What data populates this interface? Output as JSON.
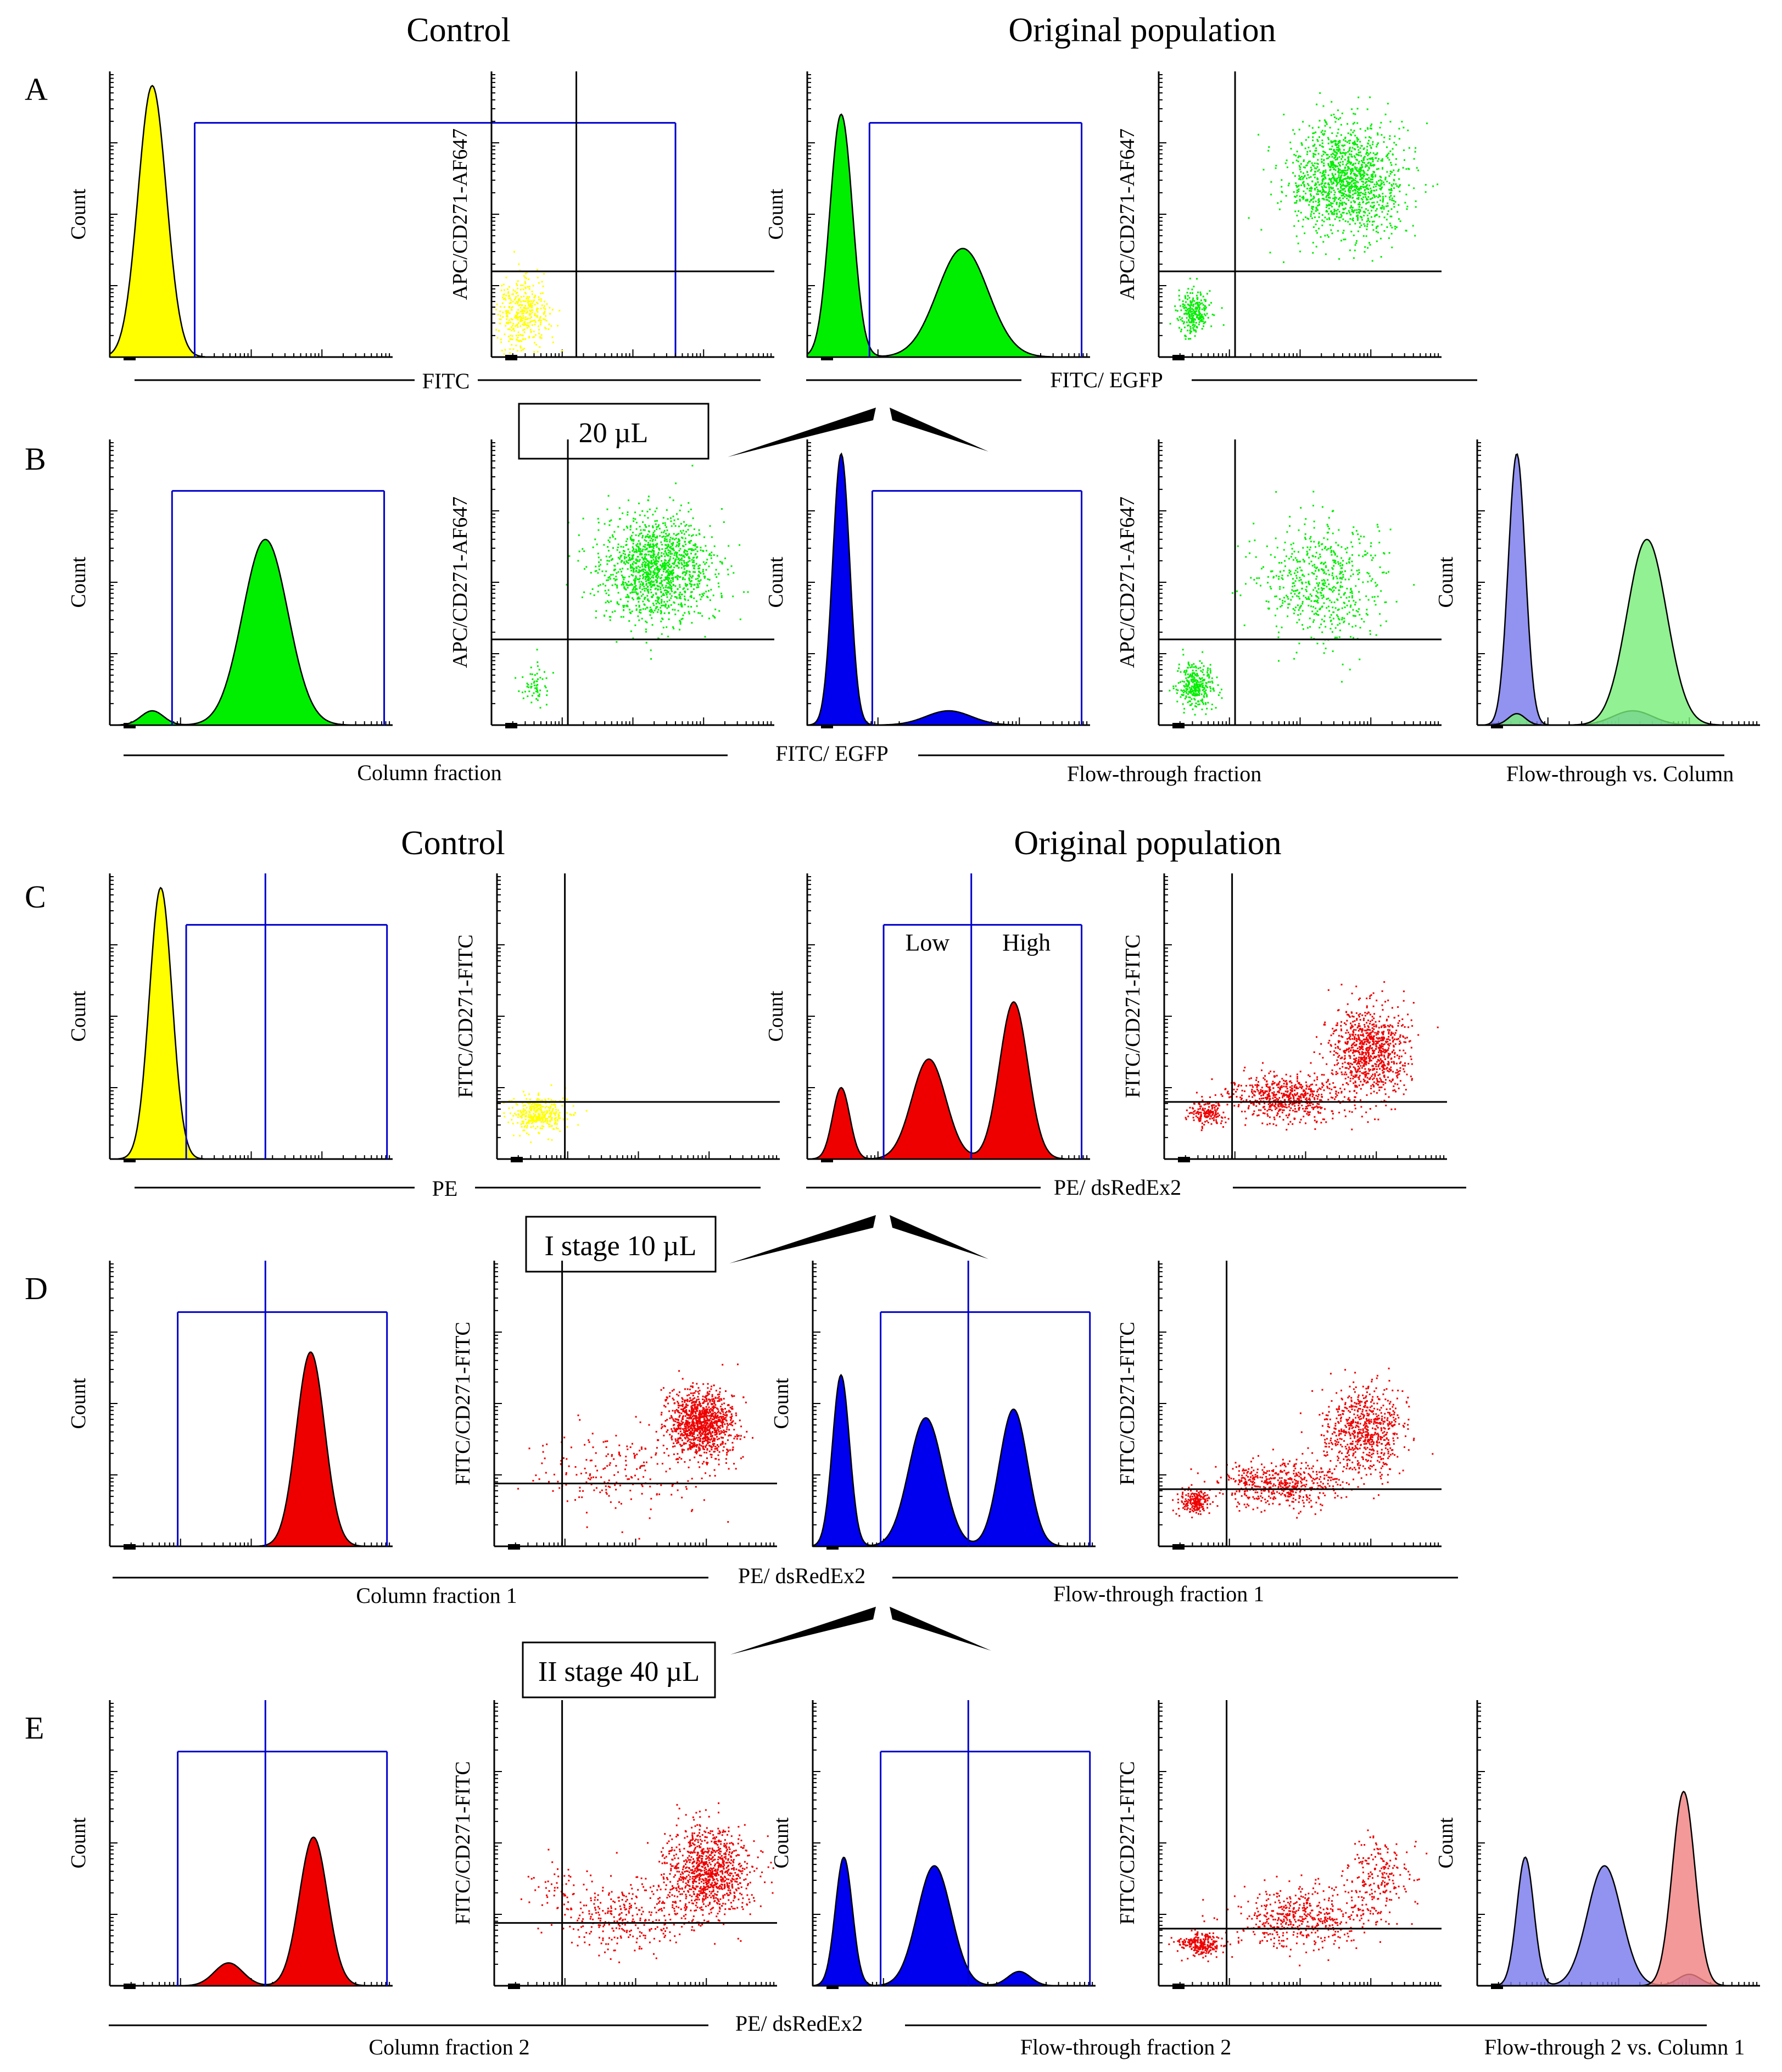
{
  "figure": {
    "header_control": "Control",
    "header_original": "Original population",
    "row_letters": [
      "A",
      "B",
      "C",
      "D",
      "E"
    ],
    "stage_labels": [
      "20 µL",
      "I stage 10 µL",
      "II stage 40 µL"
    ],
    "axis_labels": {
      "count": "Count",
      "fitc": "FITC",
      "fitc_egfp": "FITC/ EGFP",
      "apc_cd271": "APC/CD271-AF647",
      "pe": "PE",
      "pe_dsredex2": "PE/ dsRedEx2",
      "fitc_cd271": "FITC/CD271-FITC"
    },
    "fraction_labels": {
      "b_column": "Column fraction",
      "b_flow": "Flow-through fraction",
      "b_overlay": "Flow-through  vs. Column",
      "d_column": "Column fraction 1",
      "d_flow": "Flow-through fraction 1",
      "e_column": "Column fraction 2",
      "e_flow": "Flow-through fraction 2",
      "e_overlay": "Flow-through 2 vs. Column 1"
    },
    "gate_labels": {
      "low": "Low",
      "high": "High"
    }
  },
  "colors": {
    "yellow": "#ffff00",
    "green": "#00ee00",
    "blue": "#0000ee",
    "red": "#ee0000",
    "gate": "#0000cc",
    "overlay_blue": "#7777ee",
    "overlay_green": "#77ee77",
    "overlay_red": "#f08080"
  },
  "chart_data": [
    {
      "id": "A-control-hist",
      "type": "histogram",
      "xlabel": "FITC",
      "ylabel": "Count",
      "x_scale": "log-decades",
      "x_range": [
        0,
        4
      ],
      "series": [
        {
          "name": "Control",
          "color": "yellow",
          "peaks": [
            {
              "center": 0.15,
              "width": 0.05,
              "height": 0.95
            }
          ]
        }
      ],
      "gates": {
        "marker": [
          0.3,
          2.0
        ],
        "dividers": []
      }
    },
    {
      "id": "A-control-dot",
      "type": "scatter",
      "xlabel": "FITC",
      "ylabel": "APC/CD271-AF647",
      "x_range": [
        0,
        4
      ],
      "y_range": [
        0,
        4
      ],
      "quadrant": {
        "x": 0.3,
        "y": 0.3
      },
      "series": [
        {
          "color": "yellow",
          "clusters": [
            {
              "x": 0.1,
              "y": 0.15,
              "sx": 0.05,
              "sy": 0.06,
              "n": 400
            }
          ]
        }
      ]
    },
    {
      "id": "A-original-hist",
      "type": "histogram",
      "xlabel": "FITC/ EGFP",
      "ylabel": "Count",
      "x_range": [
        0,
        4
      ],
      "series": [
        {
          "name": "Original population",
          "color": "green",
          "peaks": [
            {
              "center": 0.12,
              "width": 0.04,
              "height": 0.85
            },
            {
              "center": 0.55,
              "width": 0.09,
              "height": 0.38
            }
          ]
        }
      ],
      "gates": {
        "marker": [
          0.22,
          0.97
        ],
        "dividers": []
      }
    },
    {
      "id": "A-original-dot",
      "type": "scatter",
      "xlabel": "FITC/ EGFP",
      "ylabel": "APC/CD271-AF647",
      "x_range": [
        0,
        4
      ],
      "y_range": [
        0,
        4
      ],
      "quadrant": {
        "x": 0.27,
        "y": 0.3
      },
      "series": [
        {
          "color": "green",
          "clusters": [
            {
              "x": 0.12,
              "y": 0.16,
              "sx": 0.03,
              "sy": 0.04,
              "n": 250
            },
            {
              "x": 0.66,
              "y": 0.62,
              "sx": 0.1,
              "sy": 0.1,
              "n": 1400
            }
          ]
        }
      ]
    },
    {
      "id": "B-column-hist",
      "type": "histogram",
      "xlabel": "FITC/ EGFP",
      "ylabel": "Count",
      "x_range": [
        0,
        4
      ],
      "series": [
        {
          "name": "Column fraction",
          "color": "green",
          "peaks": [
            {
              "center": 0.15,
              "width": 0.04,
              "height": 0.05
            },
            {
              "center": 0.55,
              "width": 0.08,
              "height": 0.65
            }
          ]
        }
      ],
      "gates": {
        "marker": [
          0.22,
          0.97
        ],
        "dividers": []
      }
    },
    {
      "id": "B-column-dot",
      "type": "scatter",
      "xlabel": "FITC/ EGFP",
      "ylabel": "APC/CD271-AF647",
      "x_range": [
        0,
        4
      ],
      "y_range": [
        0,
        4
      ],
      "quadrant": {
        "x": 0.27,
        "y": 0.3
      },
      "series": [
        {
          "color": "green",
          "clusters": [
            {
              "x": 0.15,
              "y": 0.15,
              "sx": 0.03,
              "sy": 0.04,
              "n": 60
            },
            {
              "x": 0.58,
              "y": 0.55,
              "sx": 0.1,
              "sy": 0.09,
              "n": 1400
            }
          ]
        }
      ]
    },
    {
      "id": "B-flow-hist",
      "type": "histogram",
      "xlabel": "FITC/ EGFP",
      "ylabel": "Count",
      "x_range": [
        0,
        4
      ],
      "series": [
        {
          "name": "Flow-through fraction",
          "color": "blue",
          "peaks": [
            {
              "center": 0.12,
              "width": 0.03,
              "height": 0.95
            },
            {
              "center": 0.5,
              "width": 0.08,
              "height": 0.05
            }
          ]
        }
      ],
      "gates": {
        "marker": [
          0.23,
          0.97
        ],
        "dividers": []
      }
    },
    {
      "id": "B-flow-dot",
      "type": "scatter",
      "xlabel": "FITC/ EGFP",
      "ylabel": "APC/CD271-AF647",
      "x_range": [
        0,
        4
      ],
      "y_range": [
        0,
        4
      ],
      "quadrant": {
        "x": 0.27,
        "y": 0.3
      },
      "series": [
        {
          "color": "green",
          "clusters": [
            {
              "x": 0.13,
              "y": 0.14,
              "sx": 0.03,
              "sy": 0.04,
              "n": 300
            },
            {
              "x": 0.58,
              "y": 0.5,
              "sx": 0.11,
              "sy": 0.11,
              "n": 600
            }
          ]
        }
      ]
    },
    {
      "id": "B-overlay-hist",
      "type": "histogram",
      "xlabel": "",
      "ylabel": "Count",
      "x_range": [
        0,
        4
      ],
      "series": [
        {
          "name": "Flow-through",
          "color": "overlay_blue",
          "peaks": [
            {
              "center": 0.14,
              "width": 0.03,
              "height": 0.95
            },
            {
              "center": 0.55,
              "width": 0.07,
              "height": 0.05
            }
          ]
        },
        {
          "name": "Column",
          "color": "overlay_green",
          "peaks": [
            {
              "center": 0.14,
              "width": 0.03,
              "height": 0.04
            },
            {
              "center": 0.6,
              "width": 0.07,
              "height": 0.65
            }
          ]
        }
      ],
      "gates": null
    },
    {
      "id": "C-control-hist",
      "type": "histogram",
      "xlabel": "PE",
      "ylabel": "Count",
      "x_range": [
        0,
        4
      ],
      "series": [
        {
          "name": "Control",
          "color": "yellow",
          "peaks": [
            {
              "center": 0.18,
              "width": 0.04,
              "height": 0.95
            }
          ]
        }
      ],
      "gates": {
        "marker": [
          0.27,
          0.98
        ],
        "dividers": [
          0.55
        ]
      }
    },
    {
      "id": "C-control-dot",
      "type": "scatter",
      "xlabel": "PE",
      "ylabel": "FITC/CD271-FITC",
      "x_range": [
        0,
        4
      ],
      "y_range": [
        0,
        4
      ],
      "quadrant": {
        "x": 0.24,
        "y": 0.2
      },
      "series": [
        {
          "color": "yellow",
          "clusters": [
            {
              "x": 0.14,
              "y": 0.16,
              "sx": 0.05,
              "sy": 0.03,
              "n": 350
            }
          ]
        }
      ]
    },
    {
      "id": "C-original-hist",
      "type": "histogram",
      "xlabel": "PE/ dsRedEx2",
      "ylabel": "Count",
      "x_range": [
        0,
        4
      ],
      "gate_labels": [
        "Low",
        "High"
      ],
      "series": [
        {
          "name": "Original population",
          "color": "red",
          "peaks": [
            {
              "center": 0.12,
              "width": 0.03,
              "height": 0.25
            },
            {
              "center": 0.43,
              "width": 0.06,
              "height": 0.35
            },
            {
              "center": 0.73,
              "width": 0.05,
              "height": 0.55
            }
          ]
        }
      ],
      "gates": {
        "marker": [
          0.27,
          0.97
        ],
        "dividers": [
          0.58
        ]
      }
    },
    {
      "id": "C-original-dot",
      "type": "scatter",
      "xlabel": "PE/ dsRedEx2",
      "ylabel": "FITC/CD271-FITC",
      "x_range": [
        0,
        4
      ],
      "y_range": [
        0,
        4
      ],
      "quadrant": {
        "x": 0.24,
        "y": 0.2
      },
      "series": [
        {
          "color": "red",
          "clusters": [
            {
              "x": 0.15,
              "y": 0.16,
              "sx": 0.03,
              "sy": 0.02,
              "n": 150
            },
            {
              "x": 0.42,
              "y": 0.22,
              "sx": 0.1,
              "sy": 0.04,
              "n": 600
            },
            {
              "x": 0.72,
              "y": 0.38,
              "sx": 0.07,
              "sy": 0.08,
              "n": 900
            }
          ]
        }
      ]
    },
    {
      "id": "D-column-hist",
      "type": "histogram",
      "xlabel": "PE/ dsRedEx2",
      "ylabel": "Count",
      "x_range": [
        0,
        4
      ],
      "series": [
        {
          "name": "Column fraction 1",
          "color": "red",
          "peaks": [
            {
              "center": 0.71,
              "width": 0.05,
              "height": 0.68
            }
          ]
        }
      ],
      "gates": {
        "marker": [
          0.24,
          0.98
        ],
        "dividers": [
          0.55
        ]
      }
    },
    {
      "id": "D-column-dot",
      "type": "scatter",
      "xlabel": "PE/ dsRedEx2",
      "ylabel": "FITC/CD271-FITC",
      "x_range": [
        0,
        4
      ],
      "y_range": [
        0,
        4
      ],
      "quadrant": {
        "x": 0.24,
        "y": 0.22
      },
      "series": [
        {
          "color": "red",
          "clusters": [
            {
              "x": 0.73,
              "y": 0.43,
              "sx": 0.06,
              "sy": 0.06,
              "n": 1100
            },
            {
              "x": 0.45,
              "y": 0.26,
              "sx": 0.15,
              "sy": 0.08,
              "n": 200
            }
          ]
        }
      ]
    },
    {
      "id": "D-flow-hist",
      "type": "histogram",
      "xlabel": "PE/ dsRedEx2",
      "ylabel": "Count",
      "x_range": [
        0,
        4
      ],
      "series": [
        {
          "name": "Flow-through fraction 1",
          "color": "blue",
          "peaks": [
            {
              "center": 0.1,
              "width": 0.03,
              "height": 0.6
            },
            {
              "center": 0.4,
              "width": 0.06,
              "height": 0.45
            },
            {
              "center": 0.71,
              "width": 0.05,
              "height": 0.48
            }
          ]
        }
      ],
      "gates": {
        "marker": [
          0.24,
          0.98
        ],
        "dividers": [
          0.55
        ]
      }
    },
    {
      "id": "D-flow-dot",
      "type": "scatter",
      "xlabel": "PE/ dsRedEx2",
      "ylabel": "FITC/CD271-FITC",
      "x_range": [
        0,
        4
      ],
      "y_range": [
        0,
        4
      ],
      "quadrant": {
        "x": 0.24,
        "y": 0.2
      },
      "series": [
        {
          "color": "red",
          "clusters": [
            {
              "x": 0.12,
              "y": 0.16,
              "sx": 0.03,
              "sy": 0.02,
              "n": 200
            },
            {
              "x": 0.42,
              "y": 0.22,
              "sx": 0.1,
              "sy": 0.04,
              "n": 500
            },
            {
              "x": 0.72,
              "y": 0.4,
              "sx": 0.07,
              "sy": 0.08,
              "n": 700
            }
          ]
        }
      ]
    },
    {
      "id": "E-column-hist",
      "type": "histogram",
      "xlabel": "PE/ dsRedEx2",
      "ylabel": "Count",
      "x_range": [
        0,
        4
      ],
      "series": [
        {
          "name": "Column fraction 2",
          "color": "red",
          "peaks": [
            {
              "center": 0.42,
              "width": 0.05,
              "height": 0.08
            },
            {
              "center": 0.72,
              "width": 0.05,
              "height": 0.52
            }
          ]
        }
      ],
      "gates": {
        "marker": [
          0.24,
          0.98
        ],
        "dividers": [
          0.55
        ]
      }
    },
    {
      "id": "E-column-dot",
      "type": "scatter",
      "xlabel": "PE/ dsRedEx2",
      "ylabel": "FITC/CD271-FITC",
      "x_range": [
        0,
        4
      ],
      "y_range": [
        0,
        4
      ],
      "quadrant": {
        "x": 0.24,
        "y": 0.22
      },
      "series": [
        {
          "color": "red",
          "clusters": [
            {
              "x": 0.75,
              "y": 0.4,
              "sx": 0.08,
              "sy": 0.08,
              "n": 1000
            },
            {
              "x": 0.45,
              "y": 0.24,
              "sx": 0.12,
              "sy": 0.06,
              "n": 300
            },
            {
              "x": 0.22,
              "y": 0.35,
              "sx": 0.05,
              "sy": 0.05,
              "n": 40
            }
          ]
        }
      ]
    },
    {
      "id": "E-flow-hist",
      "type": "histogram",
      "xlabel": "PE/ dsRedEx2",
      "ylabel": "Count",
      "x_range": [
        0,
        4
      ],
      "series": [
        {
          "name": "Flow-through fraction 2",
          "color": "blue",
          "peaks": [
            {
              "center": 0.11,
              "width": 0.03,
              "height": 0.45
            },
            {
              "center": 0.43,
              "width": 0.06,
              "height": 0.42
            },
            {
              "center": 0.73,
              "width": 0.04,
              "height": 0.05
            }
          ]
        }
      ],
      "gates": {
        "marker": [
          0.24,
          0.98
        ],
        "dividers": [
          0.55
        ]
      }
    },
    {
      "id": "E-flow-dot",
      "type": "scatter",
      "xlabel": "PE/ dsRedEx2",
      "ylabel": "FITC/CD271-FITC",
      "x_range": [
        0,
        4
      ],
      "y_range": [
        0,
        4
      ],
      "quadrant": {
        "x": 0.24,
        "y": 0.2
      },
      "series": [
        {
          "color": "red",
          "clusters": [
            {
              "x": 0.15,
              "y": 0.15,
              "sx": 0.04,
              "sy": 0.02,
              "n": 250
            },
            {
              "x": 0.5,
              "y": 0.24,
              "sx": 0.12,
              "sy": 0.05,
              "n": 500
            },
            {
              "x": 0.78,
              "y": 0.38,
              "sx": 0.06,
              "sy": 0.07,
              "n": 200
            }
          ]
        }
      ]
    },
    {
      "id": "E-overlay-hist",
      "type": "histogram",
      "xlabel": "",
      "ylabel": "Count",
      "x_range": [
        0,
        4
      ],
      "series": [
        {
          "name": "Flow-through 2",
          "color": "overlay_blue",
          "peaks": [
            {
              "center": 0.17,
              "width": 0.03,
              "height": 0.45
            },
            {
              "center": 0.45,
              "width": 0.06,
              "height": 0.42
            },
            {
              "center": 0.75,
              "width": 0.04,
              "height": 0.04
            }
          ]
        },
        {
          "name": "Column 1",
          "color": "overlay_red",
          "peaks": [
            {
              "center": 0.73,
              "width": 0.04,
              "height": 0.68
            }
          ]
        }
      ],
      "gates": null
    }
  ]
}
